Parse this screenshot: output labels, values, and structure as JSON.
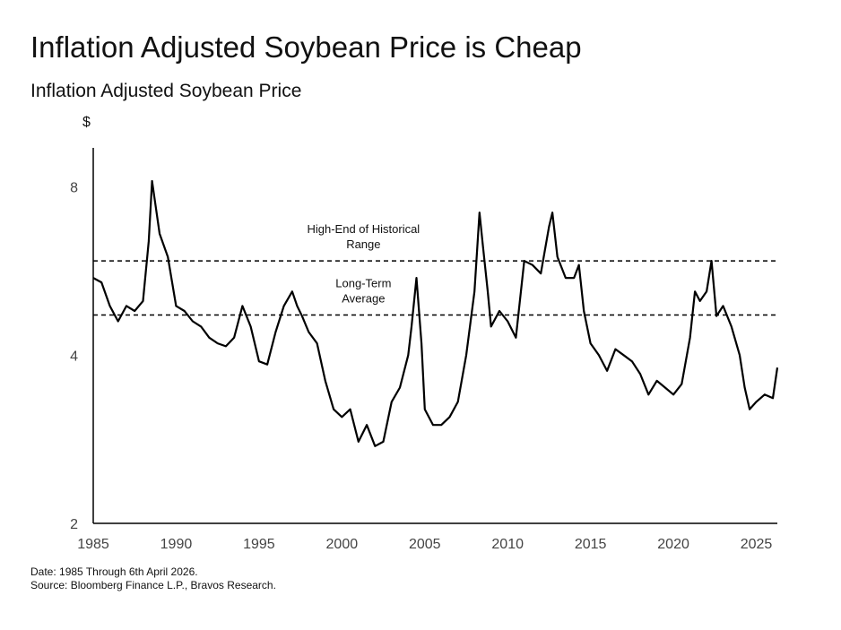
{
  "title": "Inflation Adjusted Soybean Price is Cheap",
  "subtitle": "Inflation Adjusted Soybean Price",
  "footer": {
    "date_note": "Date: 1985 Through 6th April 2026.",
    "source_note": "Source: Bloomberg Finance L.P., Bravos Research."
  },
  "chart_data": {
    "type": "line",
    "title": "Inflation Adjusted Soybean Price",
    "ylabel": "$",
    "xlabel": "",
    "xlim": [
      1985,
      2026.27
    ],
    "ylim": [
      2,
      9.4
    ],
    "y_scale": "log",
    "x_ticks": [
      "1985",
      "1990",
      "1995",
      "2000",
      "2005",
      "2010",
      "2015",
      "2020",
      "2025"
    ],
    "y_ticks": [
      "2",
      "4",
      "8"
    ],
    "grid": false,
    "series": [
      {
        "color": "#000000",
        "x": [
          1985.0,
          1985.5,
          1986.0,
          1986.5,
          1987.0,
          1987.5,
          1988.0,
          1988.35,
          1988.55,
          1989.0,
          1989.5,
          1990.0,
          1990.5,
          1991.0,
          1991.5,
          1992.0,
          1992.5,
          1993.0,
          1993.5,
          1994.0,
          1994.5,
          1995.0,
          1995.5,
          1996.0,
          1996.5,
          1997.0,
          1997.3,
          1997.6,
          1998.0,
          1998.5,
          1999.0,
          1999.5,
          2000.0,
          2000.5,
          2001.0,
          2001.5,
          2002.0,
          2002.5,
          2003.0,
          2003.5,
          2004.0,
          2004.2,
          2004.5,
          2004.8,
          2005.0,
          2005.5,
          2006.0,
          2006.5,
          2007.0,
          2007.5,
          2008.0,
          2008.3,
          2008.5,
          2008.8,
          2009.0,
          2009.5,
          2010.0,
          2010.5,
          2011.0,
          2011.5,
          2012.0,
          2012.5,
          2012.7,
          2013.0,
          2013.5,
          2014.0,
          2014.3,
          2014.6,
          2015.0,
          2015.5,
          2016.0,
          2016.5,
          2017.0,
          2017.5,
          2018.0,
          2018.5,
          2019.0,
          2019.5,
          2020.0,
          2020.5,
          2021.0,
          2021.3,
          2021.6,
          2022.0,
          2022.3,
          2022.6,
          2023.0,
          2023.5,
          2024.0,
          2024.3,
          2024.6,
          2025.0,
          2025.5,
          2026.0,
          2026.27
        ],
        "y": [
          5.5,
          5.4,
          4.9,
          4.6,
          4.9,
          4.8,
          5.0,
          6.4,
          8.2,
          6.6,
          6.0,
          4.9,
          4.8,
          4.6,
          4.5,
          4.3,
          4.2,
          4.15,
          4.3,
          4.9,
          4.5,
          3.9,
          3.85,
          4.4,
          4.9,
          5.2,
          4.9,
          4.7,
          4.4,
          4.2,
          3.6,
          3.2,
          3.1,
          3.2,
          2.8,
          3.0,
          2.75,
          2.8,
          3.3,
          3.5,
          4.0,
          4.5,
          5.5,
          4.2,
          3.2,
          3.0,
          3.0,
          3.1,
          3.3,
          4.0,
          5.2,
          7.2,
          6.3,
          5.2,
          4.5,
          4.8,
          4.6,
          4.3,
          5.9,
          5.8,
          5.6,
          6.8,
          7.2,
          6.0,
          5.5,
          5.5,
          5.8,
          4.8,
          4.2,
          4.0,
          3.75,
          4.1,
          4.0,
          3.9,
          3.7,
          3.4,
          3.6,
          3.5,
          3.4,
          3.55,
          4.3,
          5.2,
          5.0,
          5.2,
          5.9,
          4.7,
          4.9,
          4.5,
          4.0,
          3.5,
          3.2,
          3.3,
          3.4,
          3.35,
          3.8
        ]
      }
    ],
    "reference_lines": [
      {
        "label": "High-End of Historical Range",
        "label_lines": [
          "High-End of Historical",
          "Range"
        ],
        "y": 5.9,
        "style": "dashed"
      },
      {
        "label": "Long-Term Average",
        "label_lines": [
          "Long-Term",
          "Average"
        ],
        "y": 4.72,
        "style": "dashed"
      }
    ],
    "ref_label_x": 2001.3
  }
}
